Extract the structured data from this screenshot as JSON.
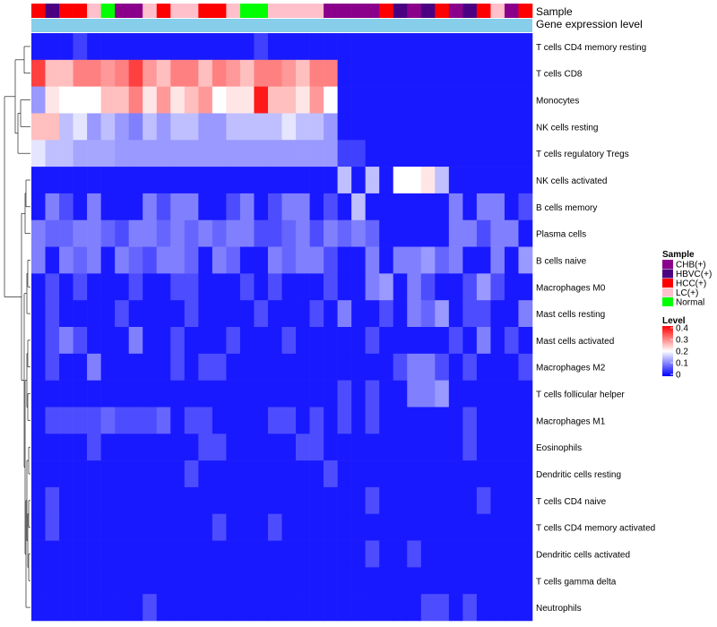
{
  "chart_data": {
    "type": "heatmap",
    "annotations": {
      "sample_label": "Sample",
      "level_label": "Gene expression level"
    },
    "columns": [
      {
        "group": "HCC(+)"
      },
      {
        "group": "HBVC(+)"
      },
      {
        "group": "HCC(+)"
      },
      {
        "group": "HCC(+)"
      },
      {
        "group": "LC(+)"
      },
      {
        "group": "Normal"
      },
      {
        "group": "CHB(+)"
      },
      {
        "group": "CHB(+)"
      },
      {
        "group": "LC(+)"
      },
      {
        "group": "HCC(+)"
      },
      {
        "group": "LC(+)"
      },
      {
        "group": "LC(+)"
      },
      {
        "group": "HCC(+)"
      },
      {
        "group": "HCC(+)"
      },
      {
        "group": "LC(+)"
      },
      {
        "group": "Normal"
      },
      {
        "group": "Normal"
      },
      {
        "group": "LC(+)"
      },
      {
        "group": "LC(+)"
      },
      {
        "group": "LC(+)"
      },
      {
        "group": "LC(+)"
      },
      {
        "group": "CHB(+)"
      },
      {
        "group": "CHB(+)"
      },
      {
        "group": "CHB(+)"
      },
      {
        "group": "CHB(+)"
      },
      {
        "group": "HCC(+)"
      },
      {
        "group": "HBVC(+)"
      },
      {
        "group": "CHB(+)"
      },
      {
        "group": "HBVC(+)"
      },
      {
        "group": "HCC(+)"
      },
      {
        "group": "CHB(+)"
      },
      {
        "group": "HBVC(+)"
      },
      {
        "group": "HCC(+)"
      },
      {
        "group": "LC(+)"
      },
      {
        "group": "CHB(+)"
      },
      {
        "group": "HCC(+)"
      }
    ],
    "rows": [
      {
        "label": "T cells CD4 memory resting",
        "values": [
          0.02,
          0.02,
          0.02,
          0.05,
          0.02,
          0.02,
          0.02,
          0.02,
          0.02,
          0.02,
          0.02,
          0.02,
          0.02,
          0.02,
          0.02,
          0.02,
          0.05,
          0.02,
          0.02,
          0.02,
          0.02,
          0.02,
          0.02,
          0.02,
          0.02,
          0.02,
          0.02,
          0.02,
          0.02,
          0.02,
          0.02,
          0.02,
          0.02,
          0.02,
          0.02,
          0.02
        ]
      },
      {
        "label": "T cells CD8",
        "values": [
          0.35,
          0.25,
          0.25,
          0.3,
          0.3,
          0.28,
          0.3,
          0.35,
          0.28,
          0.25,
          0.3,
          0.3,
          0.25,
          0.3,
          0.28,
          0.25,
          0.3,
          0.3,
          0.28,
          0.25,
          0.3,
          0.3,
          0.02,
          0.02,
          0.02,
          0.02,
          0.02,
          0.02,
          0.02,
          0.02,
          0.02,
          0.02,
          0.02,
          0.02,
          0.02,
          0.02
        ]
      },
      {
        "label": "Monocytes",
        "values": [
          0.12,
          0.22,
          0.2,
          0.2,
          0.2,
          0.25,
          0.25,
          0.3,
          0.22,
          0.28,
          0.22,
          0.25,
          0.28,
          0.2,
          0.22,
          0.22,
          0.38,
          0.25,
          0.25,
          0.22,
          0.28,
          0.2,
          0.02,
          0.02,
          0.02,
          0.02,
          0.02,
          0.02,
          0.02,
          0.02,
          0.02,
          0.02,
          0.02,
          0.02,
          0.02,
          0.02
        ]
      },
      {
        "label": "NK cells resting",
        "values": [
          0.25,
          0.25,
          0.15,
          0.18,
          0.12,
          0.15,
          0.12,
          0.1,
          0.15,
          0.12,
          0.15,
          0.15,
          0.12,
          0.12,
          0.15,
          0.15,
          0.15,
          0.15,
          0.18,
          0.15,
          0.15,
          0.12,
          0.02,
          0.02,
          0.02,
          0.02,
          0.02,
          0.02,
          0.02,
          0.02,
          0.02,
          0.02,
          0.02,
          0.02,
          0.02,
          0.02
        ]
      },
      {
        "label": "T cells regulatory  Tregs",
        "values": [
          0.18,
          0.15,
          0.15,
          0.13,
          0.13,
          0.13,
          0.12,
          0.12,
          0.12,
          0.12,
          0.12,
          0.12,
          0.12,
          0.12,
          0.12,
          0.12,
          0.12,
          0.12,
          0.12,
          0.12,
          0.12,
          0.12,
          0.05,
          0.05,
          0.02,
          0.02,
          0.02,
          0.02,
          0.02,
          0.02,
          0.02,
          0.02,
          0.02,
          0.02,
          0.02,
          0.02
        ]
      },
      {
        "label": "NK cells activated",
        "values": [
          0.02,
          0.02,
          0.02,
          0.02,
          0.02,
          0.02,
          0.02,
          0.02,
          0.02,
          0.02,
          0.02,
          0.02,
          0.02,
          0.02,
          0.02,
          0.02,
          0.02,
          0.02,
          0.02,
          0.02,
          0.02,
          0.02,
          0.15,
          0.02,
          0.15,
          0.02,
          0.2,
          0.2,
          0.22,
          0.15,
          0.02,
          0.02,
          0.02,
          0.02,
          0.02,
          0.02
        ]
      },
      {
        "label": "B cells memory",
        "values": [
          0.02,
          0.1,
          0.06,
          0.02,
          0.1,
          0.02,
          0.02,
          0.02,
          0.1,
          0.06,
          0.1,
          0.1,
          0.02,
          0.02,
          0.06,
          0.1,
          0.02,
          0.06,
          0.1,
          0.1,
          0.02,
          0.06,
          0.02,
          0.15,
          0.02,
          0.02,
          0.02,
          0.02,
          0.02,
          0.02,
          0.1,
          0.02,
          0.1,
          0.1,
          0.02,
          0.06
        ]
      },
      {
        "label": "Plasma cells",
        "values": [
          0.1,
          0.08,
          0.08,
          0.1,
          0.1,
          0.08,
          0.06,
          0.1,
          0.1,
          0.08,
          0.1,
          0.08,
          0.1,
          0.08,
          0.1,
          0.1,
          0.06,
          0.06,
          0.08,
          0.1,
          0.06,
          0.1,
          0.08,
          0.1,
          0.08,
          0.02,
          0.02,
          0.02,
          0.02,
          0.02,
          0.1,
          0.1,
          0.06,
          0.1,
          0.1,
          0.02
        ]
      },
      {
        "label": "B cells naive",
        "values": [
          0.1,
          0.02,
          0.1,
          0.08,
          0.1,
          0.02,
          0.1,
          0.08,
          0.06,
          0.1,
          0.1,
          0.08,
          0.02,
          0.1,
          0.08,
          0.02,
          0.02,
          0.1,
          0.08,
          0.1,
          0.1,
          0.06,
          0.02,
          0.02,
          0.1,
          0.02,
          0.1,
          0.1,
          0.12,
          0.08,
          0.1,
          0.02,
          0.02,
          0.1,
          0.02,
          0.12
        ]
      },
      {
        "label": "Macrophages M0",
        "values": [
          0.02,
          0.06,
          0.02,
          0.06,
          0.02,
          0.02,
          0.02,
          0.06,
          0.02,
          0.02,
          0.06,
          0.06,
          0.02,
          0.02,
          0.02,
          0.06,
          0.02,
          0.06,
          0.02,
          0.02,
          0.02,
          0.06,
          0.02,
          0.02,
          0.1,
          0.12,
          0.02,
          0.1,
          0.06,
          0.02,
          0.02,
          0.06,
          0.12,
          0.06,
          0.02,
          0.02
        ]
      },
      {
        "label": "Mast cells resting",
        "values": [
          0.02,
          0.06,
          0.02,
          0.02,
          0.02,
          0.02,
          0.06,
          0.02,
          0.02,
          0.02,
          0.02,
          0.06,
          0.02,
          0.02,
          0.02,
          0.02,
          0.06,
          0.02,
          0.02,
          0.02,
          0.06,
          0.02,
          0.1,
          0.02,
          0.02,
          0.06,
          0.02,
          0.1,
          0.08,
          0.12,
          0.02,
          0.06,
          0.06,
          0.02,
          0.02,
          0.1
        ]
      },
      {
        "label": "Mast cells activated",
        "values": [
          0.02,
          0.06,
          0.1,
          0.06,
          0.02,
          0.02,
          0.02,
          0.1,
          0.02,
          0.02,
          0.06,
          0.02,
          0.02,
          0.02,
          0.06,
          0.02,
          0.02,
          0.02,
          0.06,
          0.02,
          0.02,
          0.02,
          0.02,
          0.02,
          0.06,
          0.02,
          0.02,
          0.02,
          0.02,
          0.02,
          0.06,
          0.02,
          0.1,
          0.02,
          0.06,
          0.02
        ]
      },
      {
        "label": "Macrophages M2",
        "values": [
          0.02,
          0.06,
          0.02,
          0.02,
          0.1,
          0.02,
          0.02,
          0.02,
          0.02,
          0.02,
          0.06,
          0.02,
          0.06,
          0.06,
          0.02,
          0.02,
          0.02,
          0.02,
          0.02,
          0.02,
          0.02,
          0.02,
          0.02,
          0.02,
          0.02,
          0.02,
          0.06,
          0.1,
          0.1,
          0.06,
          0.02,
          0.06,
          0.02,
          0.02,
          0.02,
          0.06
        ]
      },
      {
        "label": "T cells follicular helper",
        "values": [
          0.02,
          0.02,
          0.02,
          0.02,
          0.02,
          0.02,
          0.02,
          0.02,
          0.02,
          0.02,
          0.02,
          0.02,
          0.02,
          0.02,
          0.02,
          0.02,
          0.02,
          0.02,
          0.02,
          0.02,
          0.02,
          0.02,
          0.06,
          0.02,
          0.06,
          0.02,
          0.02,
          0.1,
          0.1,
          0.12,
          0.02,
          0.02,
          0.02,
          0.02,
          0.02,
          0.02
        ]
      },
      {
        "label": "Macrophages M1",
        "values": [
          0.02,
          0.06,
          0.06,
          0.06,
          0.06,
          0.08,
          0.06,
          0.06,
          0.06,
          0.08,
          0.02,
          0.06,
          0.06,
          0.02,
          0.02,
          0.02,
          0.02,
          0.06,
          0.06,
          0.02,
          0.06,
          0.02,
          0.06,
          0.02,
          0.06,
          0.02,
          0.02,
          0.02,
          0.02,
          0.02,
          0.02,
          0.06,
          0.02,
          0.02,
          0.02,
          0.02
        ]
      },
      {
        "label": "Eosinophils",
        "values": [
          0.02,
          0.02,
          0.02,
          0.02,
          0.06,
          0.02,
          0.02,
          0.02,
          0.02,
          0.02,
          0.02,
          0.02,
          0.06,
          0.06,
          0.02,
          0.02,
          0.02,
          0.02,
          0.02,
          0.06,
          0.06,
          0.02,
          0.02,
          0.02,
          0.02,
          0.02,
          0.02,
          0.02,
          0.02,
          0.02,
          0.02,
          0.06,
          0.02,
          0.02,
          0.02,
          0.02
        ]
      },
      {
        "label": "Dendritic cells resting",
        "values": [
          0.02,
          0.02,
          0.02,
          0.02,
          0.02,
          0.02,
          0.02,
          0.02,
          0.02,
          0.02,
          0.02,
          0.06,
          0.02,
          0.02,
          0.02,
          0.02,
          0.02,
          0.02,
          0.02,
          0.02,
          0.02,
          0.06,
          0.02,
          0.02,
          0.02,
          0.02,
          0.02,
          0.02,
          0.02,
          0.02,
          0.02,
          0.02,
          0.02,
          0.02,
          0.02,
          0.02
        ]
      },
      {
        "label": "T cells CD4 naive",
        "values": [
          0.02,
          0.06,
          0.02,
          0.02,
          0.02,
          0.02,
          0.02,
          0.02,
          0.02,
          0.02,
          0.02,
          0.02,
          0.02,
          0.02,
          0.02,
          0.02,
          0.02,
          0.02,
          0.02,
          0.02,
          0.02,
          0.02,
          0.02,
          0.02,
          0.06,
          0.02,
          0.02,
          0.02,
          0.02,
          0.02,
          0.02,
          0.02,
          0.06,
          0.02,
          0.02,
          0.02
        ]
      },
      {
        "label": "T cells CD4 memory activated",
        "values": [
          0.02,
          0.06,
          0.02,
          0.02,
          0.02,
          0.02,
          0.02,
          0.02,
          0.02,
          0.02,
          0.02,
          0.02,
          0.02,
          0.06,
          0.02,
          0.02,
          0.02,
          0.06,
          0.02,
          0.02,
          0.02,
          0.02,
          0.02,
          0.02,
          0.02,
          0.02,
          0.02,
          0.02,
          0.02,
          0.02,
          0.02,
          0.02,
          0.02,
          0.02,
          0.02,
          0.02
        ]
      },
      {
        "label": "Dendritic cells activated",
        "values": [
          0.02,
          0.02,
          0.02,
          0.02,
          0.02,
          0.02,
          0.02,
          0.02,
          0.02,
          0.02,
          0.02,
          0.02,
          0.02,
          0.02,
          0.02,
          0.02,
          0.02,
          0.02,
          0.02,
          0.02,
          0.02,
          0.02,
          0.02,
          0.02,
          0.06,
          0.02,
          0.02,
          0.06,
          0.02,
          0.02,
          0.02,
          0.02,
          0.02,
          0.02,
          0.02,
          0.02
        ]
      },
      {
        "label": "T cells gamma delta",
        "values": [
          0.02,
          0.02,
          0.02,
          0.02,
          0.02,
          0.02,
          0.02,
          0.02,
          0.02,
          0.02,
          0.02,
          0.02,
          0.02,
          0.02,
          0.02,
          0.02,
          0.02,
          0.02,
          0.02,
          0.02,
          0.02,
          0.02,
          0.02,
          0.02,
          0.02,
          0.02,
          0.02,
          0.02,
          0.02,
          0.02,
          0.02,
          0.02,
          0.02,
          0.02,
          0.02,
          0.02
        ]
      },
      {
        "label": "Neutrophils",
        "values": [
          0.02,
          0.02,
          0.02,
          0.02,
          0.02,
          0.02,
          0.02,
          0.02,
          0.06,
          0.02,
          0.02,
          0.02,
          0.02,
          0.02,
          0.02,
          0.02,
          0.02,
          0.02,
          0.02,
          0.02,
          0.02,
          0.02,
          0.02,
          0.02,
          0.02,
          0.02,
          0.02,
          0.02,
          0.06,
          0.06,
          0.02,
          0.06,
          0.02,
          0.02,
          0.02,
          0.02
        ]
      }
    ],
    "legend_sample": {
      "title": "Sample",
      "entries": [
        {
          "label": "CHB(+)",
          "color": "#8b008b"
        },
        {
          "label": "HBVC(+)",
          "color": "#4b0082"
        },
        {
          "label": "HCC(+)",
          "color": "#ff0000"
        },
        {
          "label": "LC(+)",
          "color": "#ffc0cb"
        },
        {
          "label": "Normal",
          "color": "#00ff00"
        }
      ]
    },
    "legend_level": {
      "title": "Level",
      "ticks": [
        "0.4",
        "0.3",
        "0.2",
        "0.1",
        "0"
      ],
      "range": [
        0,
        0.4
      ],
      "colors": {
        "low": "#0000ff",
        "mid": "#ffffff",
        "high": "#ff0000"
      }
    },
    "level_bar_color": "#87ceeb"
  }
}
